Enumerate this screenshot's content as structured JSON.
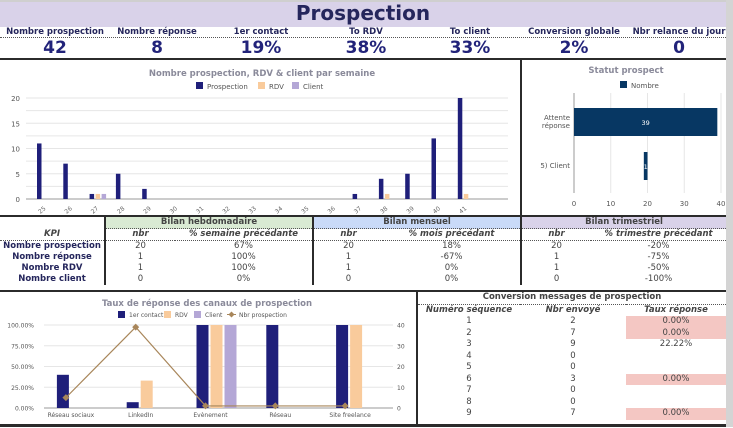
{
  "header": {
    "title": "Prospection"
  },
  "kpis": [
    {
      "label": "Nombre prospection",
      "value": "42"
    },
    {
      "label": "Nombre réponse",
      "value": "8"
    },
    {
      "label": "1er contact",
      "value": "19%"
    },
    {
      "label": "To RDV",
      "value": "38%"
    },
    {
      "label": "To client",
      "value": "33%"
    },
    {
      "label": "Conversion globale",
      "value": "2%"
    },
    {
      "label": "Nbr relance du jour",
      "value": "0"
    }
  ],
  "colors": {
    "navy": "#1f1f7a",
    "peach": "#f9cb9c",
    "lavender": "#b4a7d6",
    "dark_blue": "#073763",
    "line_brown": "#a8865a",
    "title_bg": "#d9d2e9",
    "green_hdr": "#d9ead3",
    "blue_hdr": "#c9daf8",
    "purple_hdr": "#d9d2e9",
    "pink_cell": "#f4c7c3"
  },
  "chart_data": [
    {
      "type": "bar",
      "title": "Nombre prospection, RDV & client par semaine",
      "categories": [
        "25",
        "26",
        "27",
        "28",
        "29",
        "30",
        "31",
        "32",
        "33",
        "34",
        "35",
        "36",
        "37",
        "38",
        "39",
        "40",
        "41"
      ],
      "series": [
        {
          "name": "Prospection",
          "values": [
            11,
            7,
            1,
            5,
            2,
            0,
            0,
            0,
            0,
            0,
            0,
            0,
            1,
            4,
            5,
            12,
            20
          ]
        },
        {
          "name": "RDV",
          "values": [
            0,
            0,
            1,
            0,
            0,
            0,
            0,
            0,
            0,
            0,
            0,
            0,
            0,
            1,
            0,
            0,
            1
          ]
        },
        {
          "name": "Client",
          "values": [
            0,
            0,
            1,
            0,
            0,
            0,
            0,
            0,
            0,
            0,
            0,
            0,
            0,
            0,
            0,
            0,
            0
          ]
        }
      ],
      "ylim": [
        0,
        20
      ],
      "yticks": [
        "0",
        "5",
        "10",
        "15",
        "20"
      ],
      "legend": "top",
      "grid": true
    },
    {
      "type": "bar",
      "orientation": "horizontal",
      "title": "Statut prospect",
      "categories": [
        "Attente réponse",
        "5) Client"
      ],
      "series": [
        {
          "name": "Nombre",
          "values": [
            39,
            1
          ]
        }
      ],
      "offsets": [
        0,
        19
      ],
      "data_labels": [
        "39",
        "1"
      ],
      "xlim": [
        0,
        40
      ],
      "xticks": [
        "0",
        "10",
        "20",
        "30",
        "40"
      ],
      "legend": "top"
    },
    {
      "type": "bar",
      "title": "Taux de réponse des canaux de prospection",
      "categories": [
        "Réseau sociaux",
        "LinkedIn",
        "Evènement",
        "Réseau",
        "Site freelance"
      ],
      "series": [
        {
          "name": "1er contact",
          "values": [
            40,
            7,
            100,
            100,
            100
          ],
          "axis": "left"
        },
        {
          "name": "RDV",
          "values": [
            0,
            33,
            100,
            0,
            100
          ],
          "axis": "left"
        },
        {
          "name": "Client",
          "values": [
            0,
            0,
            100,
            0,
            0
          ],
          "axis": "left"
        },
        {
          "name": "Nbr prospection",
          "type": "line",
          "values": [
            5,
            39,
            1,
            1,
            1
          ],
          "axis": "right"
        }
      ],
      "ylim_left": [
        0,
        100
      ],
      "yticks_left": [
        "0.00%",
        "25.00%",
        "50.00%",
        "75.00%",
        "100.00%"
      ],
      "ylim_right": [
        0,
        40
      ],
      "yticks_right": [
        "0",
        "10",
        "20",
        "30",
        "40"
      ],
      "legend": "top"
    }
  ],
  "bilan": {
    "kpi_header": "KPI",
    "groups": [
      {
        "title": "Bilan hebdomadaire",
        "col1": "nbr",
        "col2": "% semaine précédante"
      },
      {
        "title": "Bilan mensuel",
        "col1": "nbr",
        "col2": "% mois précédant"
      },
      {
        "title": "Bilan trimestriel",
        "col1": "nbr",
        "col2": "% trimestre précédant"
      }
    ],
    "rows": [
      {
        "label": "Nombre prospection",
        "cells": [
          "20",
          "67%",
          "20",
          "18%",
          "20",
          "-20%"
        ]
      },
      {
        "label": "Nombre réponse",
        "cells": [
          "1",
          "100%",
          "1",
          "-67%",
          "1",
          "-75%"
        ]
      },
      {
        "label": "Nombre RDV",
        "cells": [
          "1",
          "100%",
          "1",
          "0%",
          "1",
          "-50%"
        ]
      },
      {
        "label": "Nombre client",
        "cells": [
          "0",
          "0%",
          "0",
          "0%",
          "0",
          "-100%"
        ]
      }
    ]
  },
  "conversion": {
    "title": "Conversion messages de prospection",
    "headers": [
      "Numéro séquence",
      "Nbr envoyé",
      "Taux réponse"
    ],
    "rows": [
      {
        "seq": "1",
        "sent": "2",
        "rate": "0.00%",
        "highlight": true
      },
      {
        "seq": "2",
        "sent": "7",
        "rate": "0.00%",
        "highlight": true
      },
      {
        "seq": "3",
        "sent": "9",
        "rate": "22.22%",
        "highlight": false
      },
      {
        "seq": "4",
        "sent": "0",
        "rate": "",
        "highlight": false
      },
      {
        "seq": "5",
        "sent": "0",
        "rate": "",
        "highlight": false
      },
      {
        "seq": "6",
        "sent": "3",
        "rate": "0.00%",
        "highlight": true
      },
      {
        "seq": "7",
        "sent": "0",
        "rate": "",
        "highlight": false
      },
      {
        "seq": "8",
        "sent": "0",
        "rate": "",
        "highlight": false
      },
      {
        "seq": "9",
        "sent": "7",
        "rate": "0.00%",
        "highlight": true
      }
    ]
  }
}
